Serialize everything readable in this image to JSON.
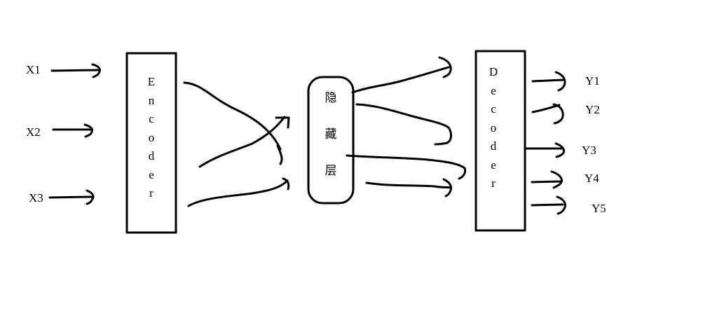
{
  "inputs": [
    "X1",
    "X2",
    "X3"
  ],
  "encoder_label": "Encoder",
  "hidden_label": "隐藏层",
  "decoder_label": "Decoder",
  "outputs": [
    "Y1",
    "Y2",
    "Y3",
    "Y4",
    "Y5"
  ],
  "colors": {
    "stroke": "#000000",
    "background": "#ffffff"
  }
}
